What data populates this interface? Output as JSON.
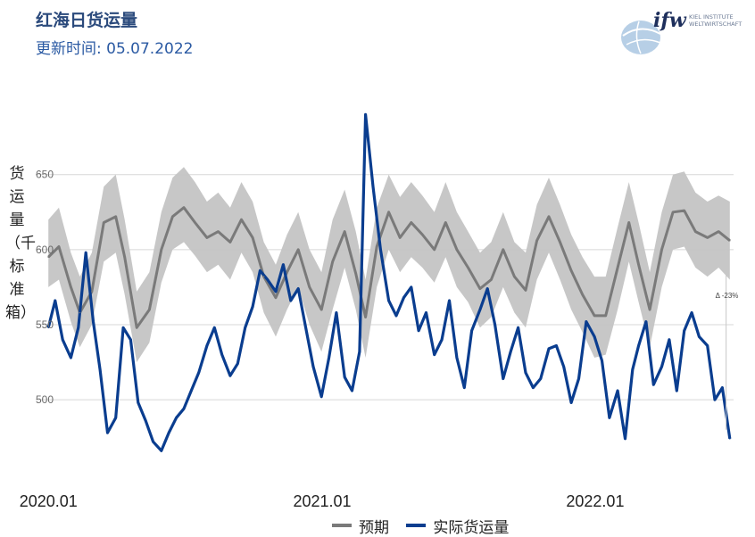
{
  "header": {
    "title": "红海日货运量",
    "subtitle": "更新时间: 05.07.2022"
  },
  "logo": {
    "text_main": "ifw",
    "text_line1": "KIEL INSTITUTE",
    "text_line2": "WELTWIRTSCHAFT"
  },
  "colors": {
    "expected": "#7a7a7a",
    "band": "#c4c4c4",
    "actual": "#0a3d8f",
    "title": "#2b4a7c",
    "grid": "#d7d7d7"
  },
  "chart_data": {
    "type": "line",
    "ylabel": "货运量（千标准箱）",
    "ylim": [
      462,
      695
    ],
    "yticks": [
      500,
      550,
      600,
      650
    ],
    "xlim": [
      "2019-12-15",
      "2022-07-05"
    ],
    "xticks": [
      {
        "date": "2020-01-01",
        "label": "2020.01"
      },
      {
        "date": "2021-01-01",
        "label": "2021.01"
      },
      {
        "date": "2022-01-01",
        "label": "2022.01"
      }
    ],
    "annotation": {
      "text": "Δ -23%",
      "date": "2022-06-25",
      "value": 550
    },
    "series": [
      {
        "name": "预期",
        "x": [
          "2020-01-01",
          "2020-01-15",
          "2020-01-31",
          "2020-02-12",
          "2020-02-28",
          "2020-03-15",
          "2020-03-31",
          "2020-04-12",
          "2020-04-28",
          "2020-05-15",
          "2020-05-31",
          "2020-06-15",
          "2020-06-30",
          "2020-07-15",
          "2020-07-31",
          "2020-08-15",
          "2020-08-31",
          "2020-09-15",
          "2020-09-30",
          "2020-10-15",
          "2020-10-31",
          "2020-11-15",
          "2020-11-30",
          "2020-12-15",
          "2020-12-31",
          "2021-01-15",
          "2021-01-31",
          "2021-02-15",
          "2021-02-28",
          "2021-03-15",
          "2021-03-31",
          "2021-04-15",
          "2021-04-30",
          "2021-05-15",
          "2021-05-31",
          "2021-06-15",
          "2021-06-30",
          "2021-07-15",
          "2021-07-31",
          "2021-08-15",
          "2021-08-31",
          "2021-09-15",
          "2021-09-30",
          "2021-10-15",
          "2021-10-31",
          "2021-11-15",
          "2021-11-30",
          "2021-12-15",
          "2021-12-31",
          "2022-01-15",
          "2022-01-31",
          "2022-02-15",
          "2022-02-28",
          "2022-03-15",
          "2022-03-31",
          "2022-04-15",
          "2022-04-30",
          "2022-05-15",
          "2022-05-31",
          "2022-06-15",
          "2022-06-30"
        ],
        "values": [
          595,
          602,
          575,
          558,
          572,
          618,
          622,
          595,
          548,
          560,
          600,
          622,
          628,
          618,
          608,
          612,
          605,
          620,
          608,
          582,
          568,
          585,
          600,
          575,
          560,
          592,
          612,
          584,
          555,
          602,
          625,
          608,
          618,
          610,
          600,
          618,
          600,
          588,
          574,
          580,
          600,
          582,
          573,
          606,
          622,
          605,
          586,
          570,
          556,
          556,
          588,
          618,
          590,
          560,
          600,
          625,
          626,
          612,
          608,
          612,
          606
        ],
        "lower": [
          575,
          580,
          552,
          535,
          550,
          592,
          598,
          570,
          525,
          538,
          578,
          600,
          605,
          596,
          585,
          590,
          580,
          598,
          585,
          558,
          542,
          560,
          575,
          550,
          532,
          560,
          588,
          560,
          528,
          575,
          600,
          585,
          595,
          588,
          578,
          595,
          575,
          565,
          548,
          555,
          575,
          558,
          548,
          580,
          598,
          580,
          560,
          545,
          528,
          530,
          560,
          592,
          565,
          535,
          575,
          600,
          602,
          588,
          582,
          588,
          580
        ],
        "upper": [
          620,
          628,
          598,
          582,
          598,
          642,
          650,
          620,
          572,
          585,
          625,
          648,
          655,
          645,
          632,
          638,
          628,
          645,
          632,
          605,
          590,
          610,
          625,
          600,
          585,
          620,
          640,
          612,
          580,
          628,
          650,
          635,
          645,
          636,
          625,
          645,
          625,
          612,
          598,
          605,
          625,
          605,
          598,
          630,
          648,
          630,
          610,
          595,
          582,
          582,
          615,
          645,
          618,
          585,
          625,
          650,
          652,
          638,
          632,
          636,
          632
        ]
      },
      {
        "name": "实际货运量",
        "x": [
          "2020-01-01",
          "2020-01-10",
          "2020-01-20",
          "2020-01-31",
          "2020-02-10",
          "2020-02-20",
          "2020-03-01",
          "2020-03-10",
          "2020-03-20",
          "2020-03-31",
          "2020-04-10",
          "2020-04-20",
          "2020-04-30",
          "2020-05-10",
          "2020-05-20",
          "2020-05-31",
          "2020-06-10",
          "2020-06-20",
          "2020-06-30",
          "2020-07-10",
          "2020-07-20",
          "2020-07-31",
          "2020-08-10",
          "2020-08-20",
          "2020-08-31",
          "2020-09-10",
          "2020-09-20",
          "2020-09-30",
          "2020-10-10",
          "2020-10-20",
          "2020-10-31",
          "2020-11-10",
          "2020-11-20",
          "2020-11-30",
          "2020-12-10",
          "2020-12-20",
          "2020-12-31",
          "2021-01-10",
          "2021-01-20",
          "2021-01-31",
          "2021-02-10",
          "2021-02-20",
          "2021-02-28",
          "2021-03-10",
          "2021-03-20",
          "2021-03-31",
          "2021-04-10",
          "2021-04-20",
          "2021-04-30",
          "2021-05-10",
          "2021-05-20",
          "2021-05-31",
          "2021-06-10",
          "2021-06-20",
          "2021-06-30",
          "2021-07-10",
          "2021-07-20",
          "2021-07-31",
          "2021-08-10",
          "2021-08-20",
          "2021-08-31",
          "2021-09-10",
          "2021-09-20",
          "2021-09-30",
          "2021-10-10",
          "2021-10-20",
          "2021-10-31",
          "2021-11-10",
          "2021-11-20",
          "2021-11-30",
          "2021-12-10",
          "2021-12-20",
          "2021-12-31",
          "2022-01-10",
          "2022-01-20",
          "2022-01-31",
          "2022-02-10",
          "2022-02-20",
          "2022-02-28",
          "2022-03-10",
          "2022-03-20",
          "2022-03-31",
          "2022-04-10",
          "2022-04-20",
          "2022-04-30",
          "2022-05-10",
          "2022-05-20",
          "2022-05-31",
          "2022-06-10",
          "2022-06-20",
          "2022-06-30"
        ],
        "values": [
          548,
          566,
          540,
          528,
          548,
          598,
          552,
          520,
          478,
          488,
          548,
          540,
          498,
          486,
          472,
          466,
          478,
          488,
          494,
          506,
          518,
          536,
          548,
          530,
          516,
          524,
          548,
          562,
          586,
          580,
          572,
          590,
          566,
          574,
          548,
          522,
          502,
          528,
          558,
          515,
          506,
          532,
          690,
          642,
          600,
          566,
          556,
          568,
          575,
          546,
          558,
          530,
          540,
          566,
          528,
          508,
          546,
          560,
          574,
          550,
          514,
          532,
          548,
          518,
          508,
          514,
          534,
          536,
          522,
          498,
          514,
          552,
          542,
          526,
          488,
          506,
          474,
          520,
          536,
          552,
          510,
          522,
          540,
          506,
          546,
          558,
          542,
          536,
          500,
          508,
          474
        ]
      }
    ]
  },
  "legend": {
    "items": [
      {
        "label": "预期"
      },
      {
        "label": "实际货运量"
      }
    ]
  }
}
